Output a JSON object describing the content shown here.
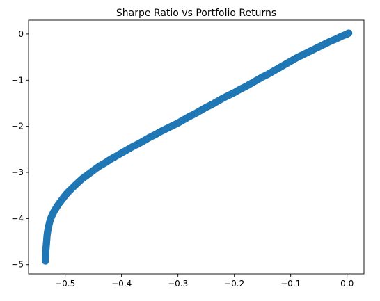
{
  "chart_data": {
    "type": "scatter",
    "title": "Sharpe Ratio vs Portfolio Returns",
    "xlabel": "",
    "ylabel": "",
    "xlim": [
      -0.565,
      0.03
    ],
    "ylim": [
      -5.2,
      0.3
    ],
    "grid": false,
    "color": "#1f77b4",
    "x_ticks": [
      -0.5,
      -0.4,
      -0.3,
      -0.2,
      -0.1,
      0.0
    ],
    "x_tick_labels": [
      "−0.5",
      "−0.4",
      "−0.3",
      "−0.2",
      "−0.1",
      "0.0"
    ],
    "y_ticks": [
      0,
      -1,
      -2,
      -3,
      -4,
      -5
    ],
    "y_tick_labels": [
      "0",
      "−1",
      "−2",
      "−3",
      "−4",
      "−5"
    ],
    "series": [
      {
        "x": [
          -0.535,
          -0.535,
          -0.534,
          -0.533,
          -0.532,
          -0.53,
          -0.527,
          -0.524,
          -0.52,
          -0.515,
          -0.51,
          -0.505,
          -0.5,
          -0.495,
          -0.49,
          -0.48,
          -0.47,
          -0.46,
          -0.45,
          -0.44,
          -0.43,
          -0.42,
          -0.41,
          -0.4,
          -0.39,
          -0.38,
          -0.37,
          -0.36,
          -0.35,
          -0.34,
          -0.33,
          -0.32,
          -0.31,
          -0.3,
          -0.29,
          -0.28,
          -0.27,
          -0.26,
          -0.25,
          -0.24,
          -0.23,
          -0.22,
          -0.21,
          -0.2,
          -0.19,
          -0.18,
          -0.17,
          -0.16,
          -0.15,
          -0.14,
          -0.13,
          -0.12,
          -0.11,
          -0.1,
          -0.09,
          -0.08,
          -0.07,
          -0.06,
          -0.05,
          -0.04,
          -0.03,
          -0.02,
          -0.01,
          0.0,
          0.003
        ],
        "y": [
          -4.92,
          -4.8,
          -4.65,
          -4.5,
          -4.35,
          -4.2,
          -4.05,
          -3.95,
          -3.85,
          -3.75,
          -3.66,
          -3.58,
          -3.5,
          -3.43,
          -3.37,
          -3.25,
          -3.14,
          -3.05,
          -2.96,
          -2.87,
          -2.8,
          -2.72,
          -2.65,
          -2.58,
          -2.51,
          -2.44,
          -2.38,
          -2.31,
          -2.24,
          -2.18,
          -2.11,
          -2.05,
          -1.99,
          -1.93,
          -1.86,
          -1.79,
          -1.73,
          -1.66,
          -1.59,
          -1.53,
          -1.46,
          -1.39,
          -1.33,
          -1.27,
          -1.2,
          -1.14,
          -1.07,
          -1.0,
          -0.93,
          -0.87,
          -0.8,
          -0.73,
          -0.66,
          -0.59,
          -0.52,
          -0.46,
          -0.4,
          -0.34,
          -0.28,
          -0.22,
          -0.16,
          -0.11,
          -0.05,
          0.0,
          0.02
        ]
      }
    ]
  }
}
